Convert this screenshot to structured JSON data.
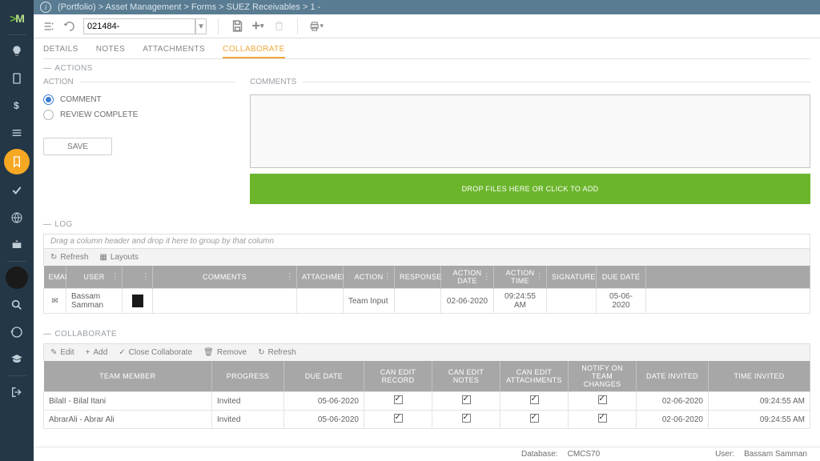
{
  "breadcrumb": "(Portfolio) > Asset Management > Forms > SUEZ Receivables > 1 -",
  "toolbar": {
    "recordId": "021484-"
  },
  "tabs": [
    {
      "label": "DETAILS",
      "active": false
    },
    {
      "label": "NOTES",
      "active": false
    },
    {
      "label": "ATTACHMENTS",
      "active": false
    },
    {
      "label": "COLLABORATE",
      "active": true
    }
  ],
  "actions": {
    "section": "ACTIONS",
    "label": "ACTION",
    "options": {
      "comment": "COMMENT",
      "review": "REVIEW COMPLETE"
    },
    "save": "SAVE"
  },
  "comments": {
    "label": "COMMENTS",
    "dropzone": "DROP FILES HERE OR CLICK TO ADD"
  },
  "log": {
    "section": "LOG",
    "groupHint": "Drag a column header and drop it here to group by that column",
    "refresh": "Refresh",
    "layouts": "Layouts",
    "cols": {
      "email": "EMAIL",
      "user": "USER",
      "comments": "COMMENTS",
      "attachments": "ATTACHMENTS",
      "action": "ACTION",
      "response": "RESPONSE",
      "actionDate": "ACTION DATE",
      "actionTime": "ACTION TIME",
      "signature": "SIGNATURE",
      "dueDate": "DUE DATE"
    },
    "rows": [
      {
        "user": "Bassam Samman",
        "action": "Team Input",
        "actionDate": "02-06-2020",
        "actionTime": "09:24:55 AM",
        "dueDate": "05-06-2020"
      }
    ]
  },
  "collab": {
    "section": "COLLABORATE",
    "btns": {
      "edit": "Edit",
      "add": "Add",
      "close": "Close Collaborate",
      "remove": "Remove",
      "refresh": "Refresh"
    },
    "cols": {
      "member": "TEAM MEMBER",
      "progress": "PROGRESS",
      "dueDate": "DUE DATE",
      "editRecord": "CAN EDIT RECORD",
      "editNotes": "CAN EDIT NOTES",
      "editAtt": "CAN EDIT ATTACHMENTS",
      "notify": "NOTIFY ON TEAM CHANGES",
      "dateInvited": "DATE INVITED",
      "timeInvited": "TIME INVITED"
    },
    "rows": [
      {
        "member": "BilalI - Bilal Itani",
        "progress": "Invited",
        "dueDate": "05-06-2020",
        "editRecord": true,
        "editNotes": true,
        "editAtt": true,
        "notify": true,
        "dateInvited": "02-06-2020",
        "timeInvited": "09:24:55 AM"
      },
      {
        "member": "AbrarAli - Abrar Ali",
        "progress": "Invited",
        "dueDate": "05-06-2020",
        "editRecord": true,
        "editNotes": true,
        "editAtt": true,
        "notify": true,
        "dateInvited": "02-06-2020",
        "timeInvited": "09:24:55 AM"
      }
    ]
  },
  "status": {
    "dbLabel": "Database:",
    "db": "CMCS70",
    "userLabel": "User:",
    "user": "Bassam Samman"
  },
  "colors": {
    "sidebar": "#243746",
    "topbar": "#597c92",
    "accent": "#f7a823",
    "green": "#6bb52b",
    "grayHeader": "#a7a7a7"
  }
}
